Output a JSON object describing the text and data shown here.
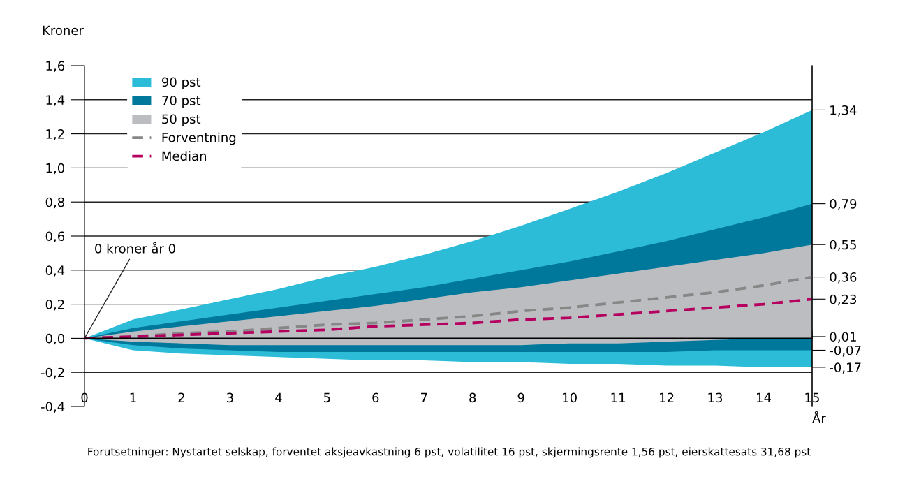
{
  "chart_data": {
    "type": "area",
    "ylabel": "Kroner",
    "xlabel": "År",
    "x": [
      0,
      1,
      2,
      3,
      4,
      5,
      6,
      7,
      8,
      9,
      10,
      11,
      12,
      13,
      14,
      15
    ],
    "series": [
      {
        "name": "90 pst",
        "color": "#2cbcd8",
        "values": [
          0,
          0.11,
          0.17,
          0.23,
          0.29,
          0.36,
          0.42,
          0.49,
          0.57,
          0.66,
          0.76,
          0.86,
          0.97,
          1.09,
          1.21,
          1.34
        ]
      },
      {
        "name": "70 pst",
        "color": "#00789c",
        "values": [
          0,
          0.06,
          0.1,
          0.14,
          0.18,
          0.22,
          0.26,
          0.3,
          0.35,
          0.4,
          0.45,
          0.51,
          0.57,
          0.64,
          0.71,
          0.79
        ]
      },
      {
        "name": "50 pst",
        "color": "#bcbdc1",
        "values": [
          0,
          0.04,
          0.07,
          0.1,
          0.13,
          0.16,
          0.19,
          0.23,
          0.27,
          0.3,
          0.34,
          0.38,
          0.42,
          0.46,
          0.5,
          0.55
        ]
      },
      {
        "color": "#2cbcd8",
        "values": [
          0,
          -0.07,
          -0.09,
          -0.1,
          -0.11,
          -0.12,
          -0.13,
          -0.13,
          -0.14,
          -0.14,
          -0.15,
          -0.15,
          -0.16,
          -0.16,
          -0.17,
          -0.17
        ]
      },
      {
        "color": "#00789c",
        "values": [
          0,
          -0.04,
          -0.06,
          -0.07,
          -0.08,
          -0.08,
          -0.08,
          -0.08,
          -0.08,
          -0.08,
          -0.08,
          -0.08,
          -0.08,
          -0.07,
          -0.07,
          -0.07
        ]
      },
      {
        "color": "#bbbdc1",
        "values": [
          0,
          -0.02,
          -0.03,
          -0.04,
          -0.04,
          -0.04,
          -0.04,
          -0.04,
          -0.04,
          -0.04,
          -0.03,
          -0.03,
          -0.02,
          -0.01,
          0,
          0.01
        ]
      },
      {
        "name": "Forventning",
        "type": "line",
        "color": "#878787",
        "line_style": "dashed",
        "values": [
          0,
          0.01,
          0.03,
          0.04,
          0.06,
          0.08,
          0.09,
          0.11,
          0.13,
          0.16,
          0.18,
          0.21,
          0.24,
          0.27,
          0.31,
          0.36
        ]
      },
      {
        "name": "Median",
        "type": "line",
        "color": "#b5005f",
        "line_style": "dashed",
        "values": [
          0,
          0.01,
          0.02,
          0.03,
          0.04,
          0.05,
          0.07,
          0.08,
          0.09,
          0.11,
          0.12,
          0.14,
          0.16,
          0.18,
          0.2,
          0.23
        ]
      }
    ],
    "xlim": [
      0,
      15
    ],
    "xticks": [
      0,
      1,
      2,
      3,
      4,
      5,
      6,
      7,
      8,
      9,
      10,
      11,
      12,
      13,
      14,
      15
    ],
    "ylim": [
      -0.4,
      1.6
    ],
    "yticks": [
      {
        "value": -0.4,
        "label": "-0,4"
      },
      {
        "value": -0.2,
        "label": "-0,2"
      },
      {
        "value": 0,
        "label": "0,0"
      },
      {
        "value": 0.2,
        "label": "0,2"
      },
      {
        "value": 0.4,
        "label": "0,4"
      },
      {
        "value": 0.6,
        "label": "0,6"
      },
      {
        "value": 0.8,
        "label": "0,8"
      },
      {
        "value": 1.0,
        "label": "1,0"
      },
      {
        "value": 1.2,
        "label": "1,2"
      },
      {
        "value": 1.4,
        "label": "1,4"
      },
      {
        "value": 1.6,
        "label": "1,6"
      }
    ],
    "y2lim": [
      -0.4,
      1.6
    ],
    "y2ticks": [
      {
        "value": 1.34,
        "label": "1,34"
      },
      {
        "value": 0.79,
        "label": "0,79"
      },
      {
        "value": 0.55,
        "label": "0,55"
      },
      {
        "value": 0.36,
        "label": "0,36"
      },
      {
        "value": 0.23,
        "label": "0,23"
      },
      {
        "value": 0.01,
        "label": "0,01"
      },
      {
        "value": -0.07,
        "label": "-0,07"
      },
      {
        "value": -0.17,
        "label": "-0,17"
      }
    ],
    "grid": "y",
    "legend": "top left",
    "annotations": [
      {
        "text": "0 kroner år 0",
        "x": 0,
        "y": 0
      },
      "Forutsetninger: Nystartet selskap, forventet aksjeavkastning 6 pst, volatilitet 16 pst, skjermingsrente 1,56 pst, eierskattesats 31,68 pst"
    ]
  }
}
